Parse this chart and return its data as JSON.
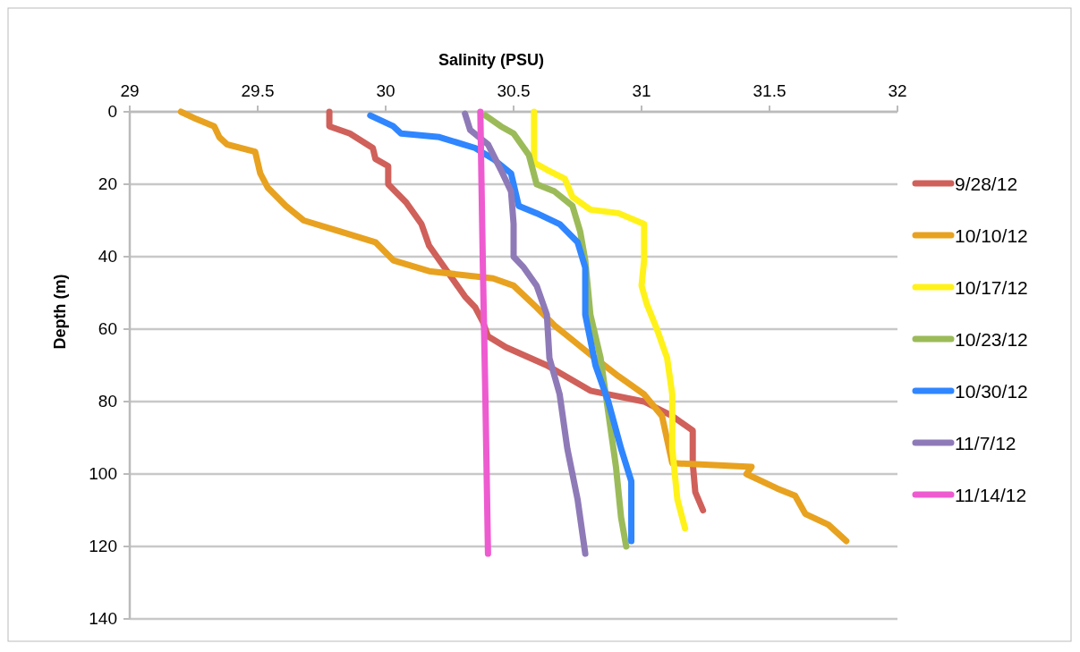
{
  "chart_data": {
    "type": "line",
    "xlabel": "Salinity (PSU)",
    "ylabel": "Depth (m)",
    "xlim": [
      29,
      32
    ],
    "xticks": [
      29,
      29.5,
      30,
      30.5,
      31,
      31.5,
      32
    ],
    "ylim": [
      140,
      0
    ],
    "yticks": [
      0,
      20,
      40,
      60,
      80,
      100,
      120,
      140
    ],
    "grid": "y",
    "legend": "right",
    "marker": "none",
    "line_style": "solid",
    "series": [
      {
        "name": "9/28/12",
        "color": "#d0605a",
        "x": [
          29.78,
          29.78,
          29.86,
          29.95,
          29.96,
          30.01,
          30.01,
          30.08,
          30.14,
          30.17,
          30.21,
          30.26,
          30.31,
          30.35,
          30.38,
          30.4,
          30.47,
          30.63,
          30.8,
          31.01,
          31.12,
          31.2,
          31.2,
          31.21,
          31.24
        ],
        "values": [
          0,
          4,
          6,
          10,
          13,
          15,
          20,
          25,
          31,
          37,
          41,
          46,
          51,
          54,
          58,
          62,
          65,
          70,
          77,
          80,
          84,
          88,
          97,
          105,
          110
        ]
      },
      {
        "name": "10/10/12",
        "color": "#e8a21f",
        "x": [
          29.2,
          29.26,
          29.33,
          29.35,
          29.38,
          29.49,
          29.51,
          29.54,
          29.61,
          29.68,
          29.82,
          29.96,
          30.03,
          30.17,
          30.42,
          30.5,
          30.59,
          30.66,
          30.73,
          30.8,
          30.91,
          31.01,
          31.08,
          31.12,
          31.43,
          31.41,
          31.53,
          31.6,
          31.64,
          31.73,
          31.8
        ],
        "values": [
          0,
          2,
          4,
          7,
          9,
          11,
          17,
          21,
          26,
          30,
          33,
          36,
          41,
          44,
          46,
          48,
          54,
          59,
          63,
          67,
          73,
          78,
          84,
          97,
          98,
          100,
          104,
          106,
          111,
          114,
          118.5
        ]
      },
      {
        "name": "10/17/12",
        "color": "#fff21a",
        "x": [
          30.58,
          30.58,
          30.63,
          30.7,
          30.73,
          30.8,
          30.91,
          31.01,
          31.01,
          31.0,
          31.02,
          31.06,
          31.1,
          31.12,
          31.12,
          31.14,
          31.17
        ],
        "values": [
          0,
          14,
          16,
          18.5,
          23.5,
          27,
          28,
          31,
          41,
          48,
          53,
          60,
          68,
          78,
          93,
          107,
          115
        ]
      },
      {
        "name": "10/23/12",
        "color": "#9bbb59",
        "x": [
          30.39,
          30.45,
          30.5,
          30.56,
          30.59,
          30.66,
          30.73,
          30.76,
          30.78,
          30.8,
          30.84,
          30.87,
          30.9,
          30.92,
          30.94
        ],
        "values": [
          1,
          4,
          6,
          12,
          20,
          22,
          26,
          33,
          41,
          56,
          68,
          83,
          98,
          112,
          120
        ]
      },
      {
        "name": "10/30/12",
        "color": "#2f86ff",
        "x": [
          29.94,
          30.03,
          30.06,
          30.21,
          30.35,
          30.42,
          30.49,
          30.52,
          30.59,
          30.68,
          30.75,
          30.78,
          30.78,
          30.82,
          30.87,
          30.92,
          30.96,
          30.96
        ],
        "values": [
          1,
          4,
          6,
          7,
          10,
          13,
          17,
          26,
          28,
          31,
          36,
          43,
          56,
          70,
          80,
          93,
          102,
          118.5
        ]
      },
      {
        "name": "11/7/12",
        "color": "#8f7ab8",
        "x": [
          30.31,
          30.33,
          30.4,
          30.45,
          30.49,
          30.5,
          30.5,
          30.54,
          30.59,
          30.63,
          30.64,
          30.68,
          30.71,
          30.75,
          30.78
        ],
        "values": [
          0.5,
          5,
          9,
          16,
          22,
          31,
          40,
          43,
          48,
          56,
          68,
          78,
          93,
          107,
          122
        ]
      },
      {
        "name": "11/14/12",
        "color": "#ee5bd0",
        "x": [
          30.37,
          30.38,
          30.39,
          30.4
        ],
        "values": [
          0,
          43,
          80,
          122
        ]
      }
    ]
  }
}
